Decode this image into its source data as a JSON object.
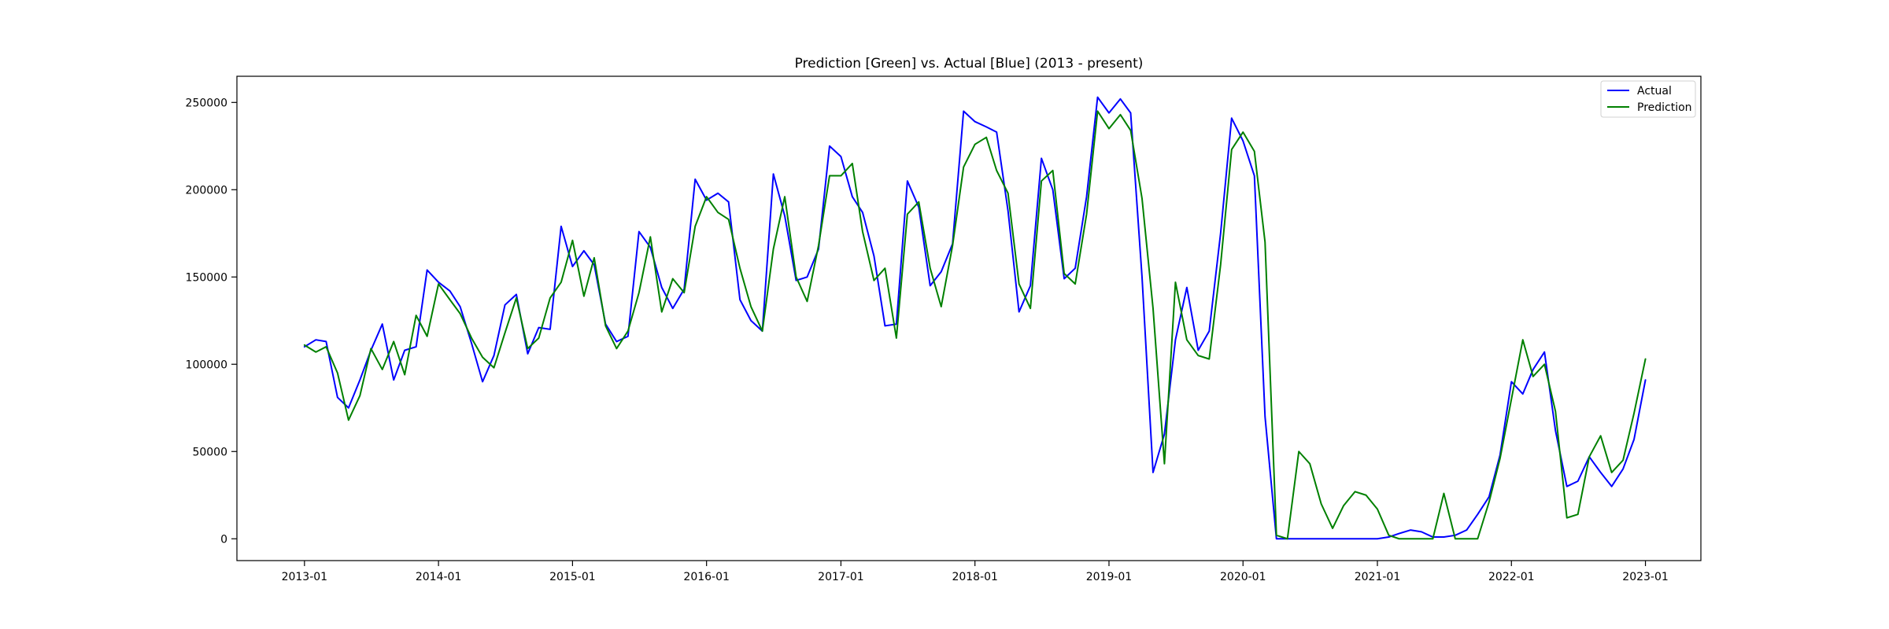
{
  "chart_data": {
    "type": "line",
    "title": "Prediction [Green] vs. Actual [Blue] (2013 - present)",
    "xlabel": "",
    "ylabel": "",
    "x_start": "2012-07-01",
    "x_end": "2023-06-01",
    "ylim": [
      -12500,
      265000
    ],
    "x_ticks": [
      "2013-01",
      "2014-01",
      "2015-01",
      "2016-01",
      "2017-01",
      "2018-01",
      "2019-01",
      "2020-01",
      "2021-01",
      "2022-01",
      "2023-01"
    ],
    "y_ticks": [
      0,
      50000,
      100000,
      150000,
      200000,
      250000
    ],
    "grid": false,
    "legend_position": "top-right",
    "x": [
      "2013-01",
      "2013-02",
      "2013-03",
      "2013-04",
      "2013-05",
      "2013-06",
      "2013-07",
      "2013-08",
      "2013-09",
      "2013-10",
      "2013-11",
      "2013-12",
      "2014-01",
      "2014-02",
      "2014-03",
      "2014-04",
      "2014-05",
      "2014-06",
      "2014-07",
      "2014-08",
      "2014-09",
      "2014-10",
      "2014-11",
      "2014-12",
      "2015-01",
      "2015-02",
      "2015-03",
      "2015-04",
      "2015-05",
      "2015-06",
      "2015-07",
      "2015-08",
      "2015-09",
      "2015-10",
      "2015-11",
      "2015-12",
      "2016-01",
      "2016-02",
      "2016-03",
      "2016-04",
      "2016-05",
      "2016-06",
      "2016-07",
      "2016-08",
      "2016-09",
      "2016-10",
      "2016-11",
      "2016-12",
      "2017-01",
      "2017-02",
      "2017-03",
      "2017-04",
      "2017-05",
      "2017-06",
      "2017-07",
      "2017-08",
      "2017-09",
      "2017-10",
      "2017-11",
      "2017-12",
      "2018-01",
      "2018-02",
      "2018-03",
      "2018-04",
      "2018-05",
      "2018-06",
      "2018-07",
      "2018-08",
      "2018-09",
      "2018-10",
      "2018-11",
      "2018-12",
      "2019-01",
      "2019-02",
      "2019-03",
      "2019-04",
      "2019-05",
      "2019-06",
      "2019-07",
      "2019-08",
      "2019-09",
      "2019-10",
      "2019-11",
      "2019-12",
      "2020-01",
      "2020-02",
      "2020-03",
      "2020-04",
      "2020-05",
      "2020-06",
      "2020-07",
      "2020-08",
      "2020-09",
      "2020-10",
      "2020-11",
      "2020-12",
      "2021-01",
      "2021-02",
      "2021-03",
      "2021-04",
      "2021-05",
      "2021-06",
      "2021-07",
      "2021-08",
      "2021-09",
      "2021-10",
      "2021-11",
      "2021-12",
      "2022-01",
      "2022-02",
      "2022-03",
      "2022-04",
      "2022-05",
      "2022-06",
      "2022-07",
      "2022-08",
      "2022-09",
      "2022-10",
      "2022-11",
      "2022-12",
      "2023-01"
    ],
    "series": [
      {
        "name": "Actual",
        "color": "#0000ff",
        "values": [
          110000,
          114000,
          113000,
          81000,
          75000,
          91000,
          108000,
          123000,
          91000,
          108000,
          110000,
          154000,
          147000,
          142000,
          133000,
          112000,
          90000,
          105000,
          134000,
          140000,
          106000,
          121000,
          120000,
          179000,
          156000,
          165000,
          157000,
          123000,
          113000,
          116000,
          176000,
          167000,
          144000,
          132000,
          143000,
          206000,
          194000,
          198000,
          193000,
          137000,
          125000,
          119000,
          209000,
          185000,
          148000,
          150000,
          166000,
          225000,
          219000,
          196000,
          187000,
          162000,
          122000,
          123000,
          205000,
          190000,
          145000,
          153000,
          169000,
          245000,
          239000,
          236000,
          233000,
          188000,
          130000,
          145000,
          218000,
          200000,
          149000,
          155000,
          196000,
          253000,
          244000,
          252000,
          244000,
          150000,
          38000,
          60000,
          114000,
          144000,
          108000,
          119000,
          175000,
          241000,
          228000,
          208000,
          70000,
          0,
          0,
          0,
          0,
          0,
          0,
          0,
          0,
          0,
          0,
          1000,
          3000,
          5000,
          4000,
          1000,
          1000,
          2000,
          5000,
          14000,
          24000,
          48000,
          90000,
          83000,
          97000,
          107000,
          62000,
          30000,
          33000,
          47000,
          38000,
          30000,
          40000,
          57000,
          91000
        ]
      },
      {
        "name": "Prediction",
        "color": "#008000",
        "values": [
          111000,
          107000,
          110000,
          95000,
          68000,
          82000,
          109000,
          97000,
          113000,
          94000,
          128000,
          116000,
          146000,
          137000,
          129000,
          115000,
          104000,
          98000,
          118000,
          138000,
          109000,
          115000,
          138000,
          147000,
          171000,
          139000,
          161000,
          122000,
          109000,
          119000,
          141000,
          173000,
          130000,
          149000,
          141000,
          179000,
          196000,
          187000,
          183000,
          155000,
          133000,
          119000,
          166000,
          196000,
          150000,
          136000,
          168000,
          208000,
          208000,
          215000,
          176000,
          148000,
          155000,
          115000,
          186000,
          193000,
          155000,
          133000,
          168000,
          213000,
          226000,
          230000,
          211000,
          198000,
          146000,
          132000,
          205000,
          211000,
          152000,
          146000,
          186000,
          245000,
          235000,
          243000,
          234000,
          195000,
          132000,
          43000,
          147000,
          114000,
          105000,
          103000,
          157000,
          223000,
          233000,
          222000,
          170000,
          2000,
          0,
          50000,
          43000,
          20000,
          6000,
          19000,
          27000,
          25000,
          17000,
          2000,
          0,
          0,
          0,
          0,
          26000,
          0,
          0,
          0,
          21000,
          46000,
          80000,
          114000,
          93000,
          100000,
          73000,
          12000,
          14000,
          47000,
          59000,
          38000,
          45000,
          72000,
          103000
        ]
      }
    ]
  }
}
